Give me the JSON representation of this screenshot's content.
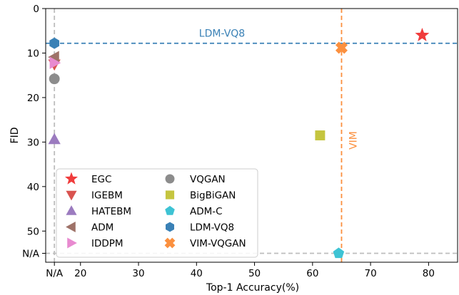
{
  "chart_data": {
    "type": "scatter",
    "xlabel": "Top-1 Accuracy(%)",
    "ylabel": "FID",
    "xlim": [
      14,
      85
    ],
    "ylim": [
      57,
      0
    ],
    "y_inverted": true,
    "x_ticks": [
      {
        "value": 15.5,
        "label": "N/A"
      },
      {
        "value": 20,
        "label": "20"
      },
      {
        "value": 30,
        "label": "30"
      },
      {
        "value": 40,
        "label": "40"
      },
      {
        "value": 50,
        "label": "50"
      },
      {
        "value": 60,
        "label": "60"
      },
      {
        "value": 70,
        "label": "70"
      },
      {
        "value": 80,
        "label": "80"
      }
    ],
    "y_ticks": [
      {
        "value": 0,
        "label": "0"
      },
      {
        "value": 10,
        "label": "10"
      },
      {
        "value": 20,
        "label": "20"
      },
      {
        "value": 30,
        "label": "30"
      },
      {
        "value": 40,
        "label": "40"
      },
      {
        "value": 50,
        "label": "50"
      },
      {
        "value": 55,
        "label": "N/A"
      }
    ],
    "series": [
      {
        "name": "EGC",
        "marker": "star",
        "color": "#f03c3c",
        "x": 78.9,
        "y": 6.0
      },
      {
        "name": "IGEBM",
        "marker": "triangle-down",
        "color": "#d9534f",
        "x": 15.5,
        "y": 12.5
      },
      {
        "name": "HATEBM",
        "marker": "triangle-up",
        "color": "#9b7bbf",
        "x": 15.5,
        "y": 29.4
      },
      {
        "name": "ADM",
        "marker": "triangle-left",
        "color": "#9e7268",
        "x": 15.5,
        "y": 10.9
      },
      {
        "name": "IDDPM",
        "marker": "triangle-right",
        "color": "#e88ad0",
        "x": 15.5,
        "y": 12.2
      },
      {
        "name": "VQGAN",
        "marker": "circle",
        "color": "#8c8c8c",
        "x": 15.5,
        "y": 15.8
      },
      {
        "name": "BigBiGAN",
        "marker": "square",
        "color": "#c5c53f",
        "x": 61.3,
        "y": 28.5
      },
      {
        "name": "ADM-C",
        "marker": "pentagon",
        "color": "#3ec3d4",
        "x": 64.5,
        "y": 55.0
      },
      {
        "name": "LDM-VQ8",
        "marker": "hexagon",
        "color": "#3a81b6",
        "x": 15.5,
        "y": 7.8
      },
      {
        "name": "VIM-VQGAN",
        "marker": "x-filled",
        "color": "#fb903f",
        "x": 65.0,
        "y": 8.8
      }
    ],
    "reference_lines": [
      {
        "orientation": "horizontal",
        "value": 7.8,
        "label": "LDM-VQ8",
        "color": "#3a81b6",
        "style": "dashed"
      },
      {
        "orientation": "vertical",
        "value": 65.0,
        "label": "VIM",
        "color": "#fb903f",
        "style": "dashed"
      },
      {
        "orientation": "vertical",
        "value": 15.5,
        "label": "",
        "color": "#bdbdbd",
        "style": "dashed"
      },
      {
        "orientation": "horizontal",
        "value": 55.0,
        "label": "",
        "color": "#bdbdbd",
        "style": "dashed"
      }
    ],
    "legend_position": "lower-left",
    "grid": false
  }
}
